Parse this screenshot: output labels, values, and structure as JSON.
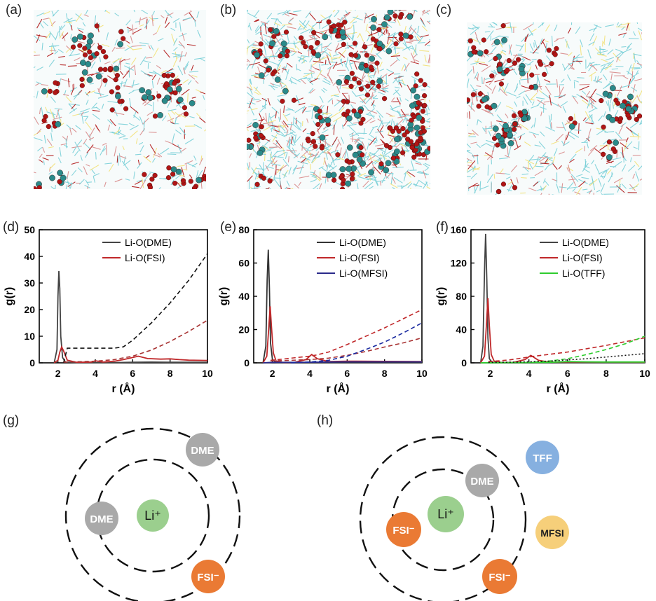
{
  "panel_labels": [
    "(a)",
    "(b)",
    "(c)",
    "(d)",
    "(e)",
    "(f)",
    "(g)",
    "(h)"
  ],
  "snapshots": [
    {
      "name": "snapshot-a",
      "colors": {
        "li": "#2a8a8a",
        "o": "#b01515",
        "c": "#7ad0d8",
        "s": "#f3e27a",
        "h": "#d98a8a"
      }
    },
    {
      "name": "snapshot-b",
      "colors": {
        "li": "#2a8a8a",
        "o": "#b01515",
        "c": "#7ad0d8",
        "s": "#f3e27a",
        "h": "#d98a8a"
      }
    },
    {
      "name": "snapshot-c",
      "colors": {
        "li": "#2a8a8a",
        "o": "#b01515",
        "c": "#7ad0d8",
        "s": "#f3e27a",
        "h": "#d98a8a"
      }
    }
  ],
  "chart_data": [
    {
      "type": "line",
      "xlabel": "r (Å)",
      "ylabel": "g(r)",
      "xlim": [
        1,
        10
      ],
      "ylim": [
        0,
        50
      ],
      "xticks": [
        2,
        4,
        6,
        8,
        10
      ],
      "yticks": [
        0,
        10,
        20,
        30,
        40,
        50
      ],
      "legend_position": "top-right",
      "series": [
        {
          "name": "Li-O(DME)",
          "color": "#444444",
          "style": "solid",
          "x": [
            1.8,
            1.95,
            2.0,
            2.05,
            2.1,
            2.15,
            2.25,
            2.4,
            3,
            4,
            5,
            6,
            7,
            8,
            9,
            10
          ],
          "y": [
            0,
            5,
            25,
            34.5,
            28,
            10,
            2,
            0.3,
            0.1,
            0.1,
            0.1,
            0.2,
            0.3,
            0.2,
            0.2,
            0.2
          ]
        },
        {
          "name": "Li-O(FSI)",
          "color": "#c0282a",
          "style": "solid",
          "x": [
            1.8,
            2.0,
            2.1,
            2.2,
            2.3,
            2.5,
            3,
            3.8,
            4,
            4.4,
            5,
            5.5,
            6,
            6.3,
            6.8,
            7.5,
            8,
            8.5,
            9,
            10
          ],
          "y": [
            0,
            1,
            4,
            6,
            4.5,
            1,
            0.2,
            0.3,
            0.8,
            0.3,
            0.6,
            1.2,
            2,
            2.5,
            1.6,
            1.4,
            1.5,
            1.2,
            1,
            0.9
          ]
        },
        {
          "name": "",
          "color": "#111111",
          "style": "dashed",
          "x": [
            2.3,
            2.5,
            3,
            4,
            5,
            5.5,
            6,
            7,
            8,
            9,
            10
          ],
          "y": [
            0,
            5.5,
            5.5,
            5.5,
            5.5,
            6,
            8.5,
            15,
            22.5,
            31,
            41
          ]
        },
        {
          "name": "",
          "color": "#a83232",
          "style": "dashed",
          "x": [
            2.3,
            3,
            4,
            5,
            6,
            7,
            8,
            9,
            10
          ],
          "y": [
            0.3,
            0.4,
            0.6,
            1.2,
            2.5,
            4.8,
            8,
            11.8,
            16
          ]
        }
      ]
    },
    {
      "type": "line",
      "xlabel": "r (Å)",
      "ylabel": "g(r)",
      "xlim": [
        1,
        10
      ],
      "ylim": [
        0,
        80
      ],
      "xticks": [
        2,
        4,
        6,
        8,
        10
      ],
      "yticks": [
        0,
        20,
        40,
        60,
        80
      ],
      "legend_position": "top-right",
      "series": [
        {
          "name": "Li-O(DME)",
          "color": "#333333",
          "style": "solid",
          "x": [
            1.5,
            1.65,
            1.72,
            1.78,
            1.84,
            1.9,
            2.0,
            2.2,
            3,
            4,
            6,
            8,
            10
          ],
          "y": [
            0,
            10,
            50,
            68,
            45,
            12,
            2,
            0.2,
            0.1,
            0.1,
            0.2,
            0.2,
            0.2
          ]
        },
        {
          "name": "Li-O(FSI)",
          "color": "#c0282a",
          "style": "solid",
          "x": [
            1.5,
            1.7,
            1.8,
            1.88,
            1.95,
            2.05,
            2.2,
            2.6,
            3.2,
            3.8,
            4.1,
            4.4,
            5,
            6,
            8,
            10
          ],
          "y": [
            0,
            4,
            20,
            34,
            22,
            6,
            1,
            0.2,
            0.3,
            2,
            5,
            2.5,
            0.8,
            1,
            0.9,
            0.8
          ]
        },
        {
          "name": "Li-O(MFSI)",
          "color": "#2a2a8a",
          "style": "solid",
          "x": [
            1.5,
            2,
            3,
            4,
            5,
            6,
            7,
            8,
            9,
            10
          ],
          "y": [
            0,
            0.3,
            0.3,
            0.4,
            0.5,
            0.6,
            0.6,
            0.6,
            0.6,
            0.6
          ]
        },
        {
          "name": "",
          "color": "#c0282a",
          "style": "dashed",
          "x": [
            1.9,
            2.5,
            3,
            4,
            4.3,
            5,
            6,
            7,
            8,
            9,
            10
          ],
          "y": [
            1.5,
            2.2,
            2.8,
            4,
            4.6,
            6.5,
            11,
            16,
            21,
            26.5,
            32
          ]
        },
        {
          "name": "",
          "color": "#a83232",
          "style": "dashed",
          "x": [
            1.9,
            3,
            4,
            5,
            6,
            7,
            8,
            9,
            10
          ],
          "y": [
            1.2,
            1.5,
            2,
            2.8,
            4.5,
            6.8,
            9.5,
            12,
            15
          ]
        },
        {
          "name": "",
          "color": "#1a2aa0",
          "style": "dashed",
          "x": [
            3,
            4,
            5,
            6,
            7,
            8,
            9,
            10
          ],
          "y": [
            0,
            0.5,
            1.5,
            4,
            8,
            12.5,
            18,
            24
          ]
        }
      ]
    },
    {
      "type": "line",
      "xlabel": "r (Å)",
      "ylabel": "g(r)",
      "xlim": [
        1,
        10
      ],
      "ylim": [
        0,
        160
      ],
      "xticks": [
        2,
        4,
        6,
        8,
        10
      ],
      "yticks": [
        0,
        40,
        80,
        120,
        160
      ],
      "legend_position": "top-right",
      "series": [
        {
          "name": "Li-O(DME)",
          "color": "#444444",
          "style": "solid",
          "x": [
            1.5,
            1.62,
            1.7,
            1.76,
            1.82,
            1.88,
            1.95,
            2.1,
            3,
            4,
            6,
            8,
            10
          ],
          "y": [
            0,
            20,
            110,
            155,
            100,
            30,
            5,
            0.5,
            0.2,
            0.2,
            0.3,
            0.3,
            0.3
          ]
        },
        {
          "name": "Li-O(FSI)",
          "color": "#c0282a",
          "style": "solid",
          "x": [
            1.5,
            1.7,
            1.8,
            1.88,
            1.95,
            2.05,
            2.2,
            2.6,
            3.2,
            3.8,
            4.1,
            4.5,
            5,
            6,
            8,
            10
          ],
          "y": [
            0,
            8,
            45,
            78,
            45,
            10,
            2,
            0.3,
            0.5,
            4,
            9,
            3,
            1,
            1,
            0.9,
            0.8
          ]
        },
        {
          "name": "Li-O(TFF)",
          "color": "#2ecc2e",
          "style": "solid",
          "x": [
            1.5,
            2,
            3,
            4,
            5,
            6,
            7,
            8,
            9,
            10
          ],
          "y": [
            0,
            0.2,
            0.3,
            0.4,
            0.6,
            1.5,
            1.2,
            1,
            1,
            1
          ]
        },
        {
          "name": "",
          "color": "#c0282a",
          "style": "dashed",
          "x": [
            1.9,
            2.5,
            3,
            4,
            4.3,
            5,
            6,
            7,
            8,
            9,
            10
          ],
          "y": [
            1.5,
            2.5,
            3.5,
            7,
            8,
            10,
            13,
            17,
            21,
            25.5,
            30
          ]
        },
        {
          "name": "",
          "color": "#2ecc2e",
          "style": "dashed",
          "x": [
            3.5,
            4,
            5,
            6,
            7,
            8,
            9,
            10
          ],
          "y": [
            0,
            0.5,
            2,
            5,
            10,
            16,
            23,
            32
          ]
        },
        {
          "name": "",
          "color": "#111111",
          "style": "dotted",
          "x": [
            1.9,
            3,
            4,
            5,
            6,
            7,
            8,
            9,
            10
          ],
          "y": [
            0.5,
            0.8,
            1.2,
            2,
            3.5,
            5,
            7,
            9,
            11
          ]
        }
      ]
    }
  ],
  "diagrams": [
    {
      "rings": true,
      "spheres": [
        {
          "label": "Li⁺",
          "color": "#9bcf8e"
        },
        {
          "label": "DME",
          "color": "#a9a9a9"
        },
        {
          "label": "DME",
          "color": "#a9a9a9"
        },
        {
          "label": "FSI⁻",
          "color": "#ea7a34"
        }
      ]
    },
    {
      "rings": true,
      "spheres": [
        {
          "label": "Li⁺",
          "color": "#9bcf8e"
        },
        {
          "label": "DME",
          "color": "#a9a9a9"
        },
        {
          "label": "FSI⁻",
          "color": "#ea7a34"
        },
        {
          "label": "FSI⁻",
          "color": "#ea7a34"
        },
        {
          "label": "TFF",
          "color": "#86b0e0"
        },
        {
          "label": "MFSI",
          "color": "#f6cf7a"
        }
      ]
    }
  ]
}
